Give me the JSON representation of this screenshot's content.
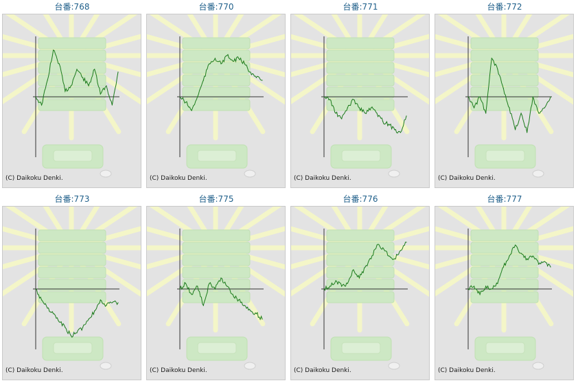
{
  "header_prefix": "台番:",
  "copyright": "(C) Daikoku Denki.",
  "colors": {
    "line": "#1a7a1a",
    "axis": "#333333",
    "panel_bg": "#e3e3e3",
    "title": "#1f5f8a",
    "ray": "#f4f6c8",
    "machine": "#cde8c4"
  },
  "chart_data": [
    {
      "type": "line",
      "title": "台番:768",
      "x": [
        0,
        3,
        6,
        9,
        12,
        15,
        18,
        21,
        24,
        27,
        30,
        33,
        36,
        39,
        42
      ],
      "values": [
        0,
        -0.15,
        0.3,
        0.85,
        0.6,
        0.1,
        0.2,
        0.5,
        0.35,
        0.2,
        0.5,
        0.05,
        0.2,
        -0.15,
        0.45
      ]
    },
    {
      "type": "line",
      "title": "台番:770",
      "x": [
        0,
        3,
        6,
        9,
        12,
        15,
        18,
        21,
        24,
        27,
        30,
        33,
        36,
        39,
        42
      ],
      "values": [
        0,
        -0.1,
        -0.25,
        0.0,
        0.3,
        0.6,
        0.7,
        0.6,
        0.75,
        0.65,
        0.7,
        0.6,
        0.45,
        0.35,
        0.3
      ]
    },
    {
      "type": "line",
      "title": "台番:771",
      "x": [
        0,
        3,
        6,
        9,
        12,
        15,
        18,
        21,
        24,
        27,
        30,
        33,
        36,
        39,
        42
      ],
      "values": [
        0,
        -0.05,
        -0.3,
        -0.4,
        -0.2,
        -0.05,
        -0.2,
        -0.3,
        -0.2,
        -0.3,
        -0.45,
        -0.5,
        -0.6,
        -0.65,
        -0.35
      ]
    },
    {
      "type": "line",
      "title": "台番:772",
      "x": [
        0,
        3,
        6,
        9,
        12,
        15,
        18,
        21,
        24,
        27,
        30,
        33,
        36,
        39,
        42
      ],
      "values": [
        0,
        -0.2,
        0.0,
        -0.3,
        0.7,
        0.5,
        0.15,
        -0.2,
        -0.6,
        -0.3,
        -0.65,
        0.0,
        -0.3,
        -0.2,
        0.0
      ]
    },
    {
      "type": "line",
      "title": "台番:773",
      "x": [
        0,
        3,
        6,
        9,
        12,
        15,
        18,
        21,
        24,
        27,
        30,
        33,
        36,
        39,
        42
      ],
      "values": [
        0,
        -0.2,
        -0.35,
        -0.45,
        -0.6,
        -0.7,
        -0.85,
        -0.8,
        -0.7,
        -0.55,
        -0.4,
        -0.2,
        -0.3,
        -0.25,
        -0.25
      ]
    },
    {
      "type": "line",
      "title": "台番:775",
      "x": [
        0,
        3,
        6,
        9,
        12,
        15,
        18,
        21,
        24,
        27,
        30,
        33,
        36,
        39,
        42
      ],
      "values": [
        0,
        0.1,
        -0.1,
        0.05,
        -0.3,
        0.1,
        0.0,
        0.2,
        0.05,
        -0.1,
        -0.2,
        -0.3,
        -0.4,
        -0.45,
        -0.55
      ]
    },
    {
      "type": "line",
      "title": "台番:776",
      "x": [
        0,
        3,
        6,
        9,
        12,
        15,
        18,
        21,
        24,
        27,
        30,
        33,
        36,
        39,
        42
      ],
      "values": [
        0,
        0.05,
        0.15,
        0.05,
        0.1,
        0.35,
        0.2,
        0.4,
        0.55,
        0.8,
        0.75,
        0.6,
        0.55,
        0.7,
        0.85
      ]
    },
    {
      "type": "line",
      "title": "台番:777",
      "x": [
        0,
        3,
        6,
        9,
        12,
        15,
        18,
        21,
        24,
        27,
        30,
        33,
        36,
        39,
        42
      ],
      "values": [
        0,
        0.05,
        -0.1,
        0.05,
        0.0,
        0.1,
        0.4,
        0.6,
        0.8,
        0.65,
        0.55,
        0.6,
        0.45,
        0.5,
        0.4
      ]
    }
  ]
}
